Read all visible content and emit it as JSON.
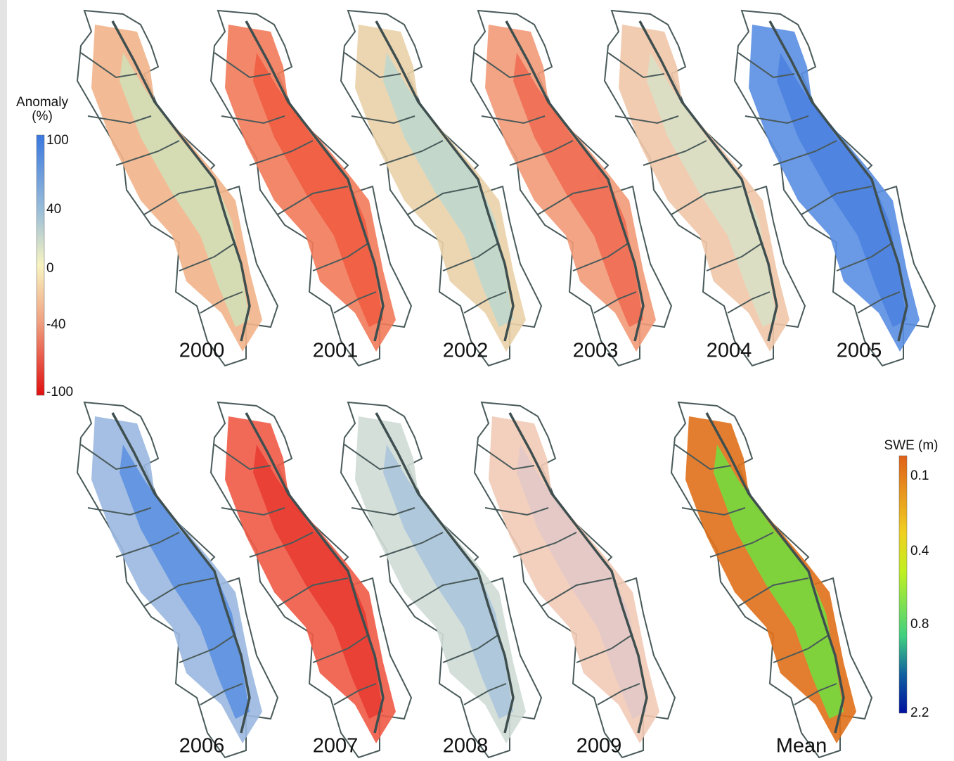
{
  "panels": [
    {
      "label": "2000"
    },
    {
      "label": "2001"
    },
    {
      "label": "2002"
    },
    {
      "label": "2003"
    },
    {
      "label": "2004"
    },
    {
      "label": "2005"
    },
    {
      "label": "2006"
    },
    {
      "label": "2007"
    },
    {
      "label": "2008"
    },
    {
      "label": "2009"
    },
    {
      "label": "Mean"
    }
  ],
  "anomaly_legend": {
    "title": "Anomaly",
    "unit": "(%)",
    "ticks": [
      "100",
      "40",
      "0",
      "-40",
      "-100"
    ]
  },
  "swe_legend": {
    "title": "SWE (m)",
    "ticks": [
      "0.1",
      "0.4",
      "0.8",
      "2.2"
    ]
  }
}
